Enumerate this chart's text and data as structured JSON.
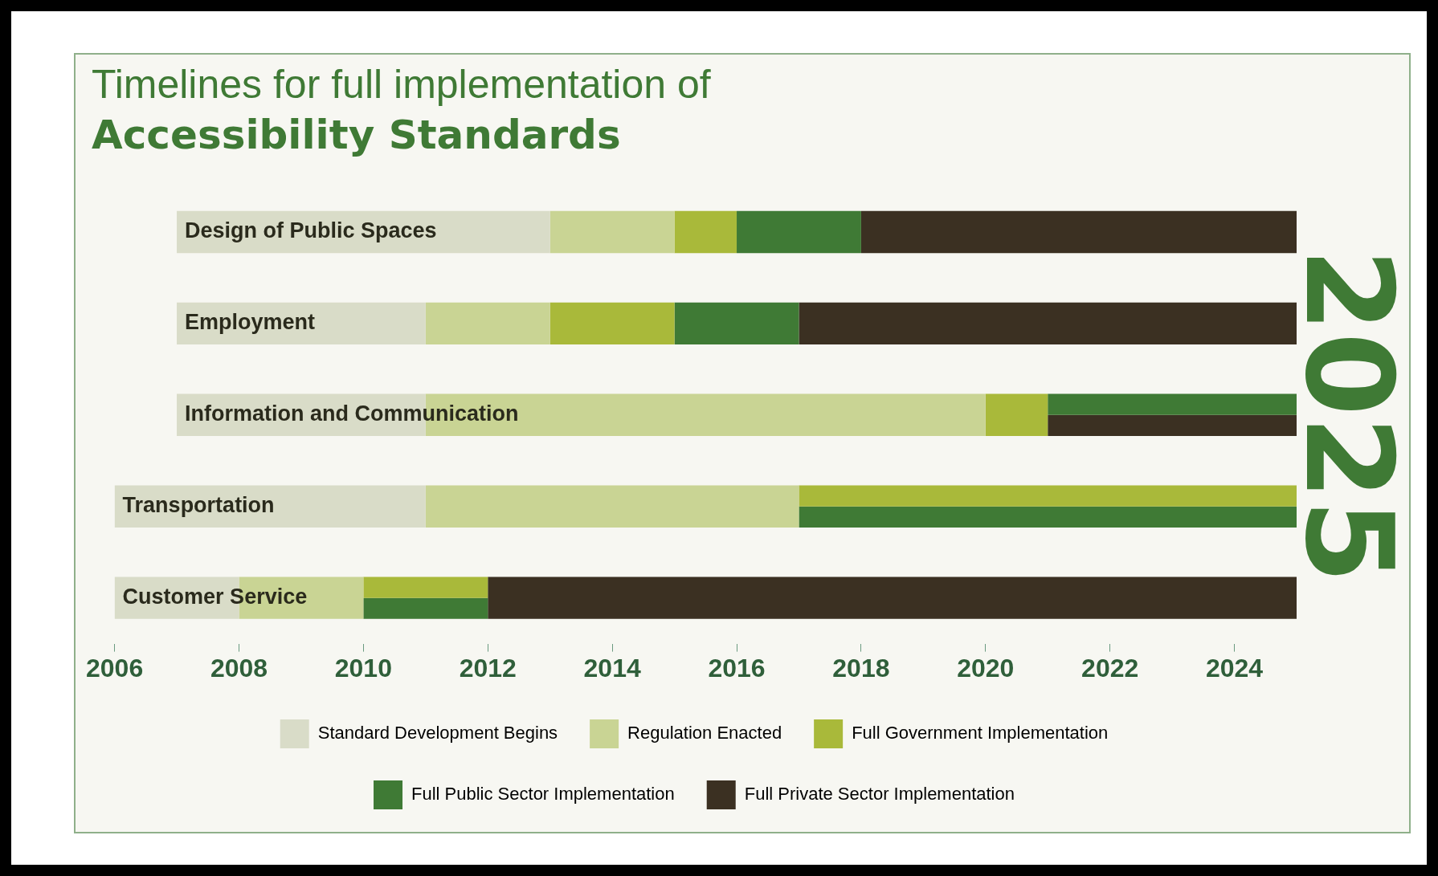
{
  "chart_data": {
    "type": "bar",
    "orientation": "horizontal",
    "title": "Timelines for full implementation of",
    "subtitle": "Accessibility Standards",
    "categories": [
      "Design of Public Spaces",
      "Employment",
      "Information and Communication",
      "Transportation",
      "Customer Service"
    ],
    "series": [
      {
        "name": "Standard Development Begins",
        "color": "#d9dcc8",
        "base": [
          2007,
          2007,
          2007,
          2006,
          2006
        ],
        "values": [
          6,
          4,
          4,
          5,
          2
        ]
      },
      {
        "name": "Regulation Enacted",
        "color": "#c9d494",
        "base": [
          2013,
          2011,
          2011,
          2011,
          2008
        ],
        "values": [
          2,
          2,
          9,
          6,
          2
        ]
      },
      {
        "name": "Full Government Implementation",
        "color": "#a9b93a",
        "base": [
          2015,
          2013,
          2020,
          2017,
          2010
        ],
        "values": [
          1,
          2,
          1,
          8,
          2
        ]
      },
      {
        "name": "Full Public Sector Implementation",
        "color": "#3f7a35",
        "base": [
          2016,
          2015,
          2021,
          2017,
          2010
        ],
        "values": [
          2,
          2,
          4,
          8,
          2
        ]
      },
      {
        "name": "Full Private Sector Implementation",
        "color": "#3b3022",
        "base": [
          2018,
          2017,
          2021,
          null,
          2012
        ],
        "values": [
          7,
          8,
          4,
          null,
          13
        ]
      }
    ],
    "xlim": [
      2006,
      2025
    ],
    "xticks": [
      2006,
      2008,
      2010,
      2012,
      2014,
      2016,
      2018,
      2020,
      2022,
      2024
    ],
    "tick_labels": "x",
    "grid": false,
    "legend": "bottom",
    "annotations": [
      "2025"
    ]
  }
}
